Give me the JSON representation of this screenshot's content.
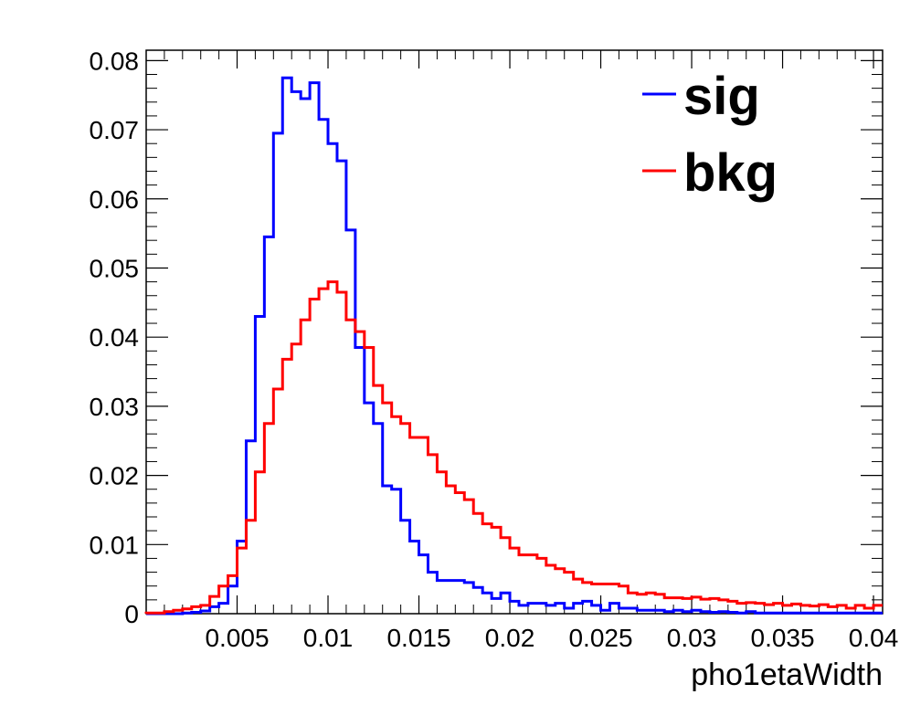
{
  "chart_data": {
    "type": "line",
    "style": "step-histogram",
    "title": "",
    "xlabel": "pho1etaWidth",
    "ylabel": "",
    "xlim": [
      0.0,
      0.0405
    ],
    "ylim": [
      0,
      0.0815
    ],
    "bin_width": 0.0005,
    "x_ticks": [
      {
        "value": 0.005,
        "label": "0.005"
      },
      {
        "value": 0.01,
        "label": "0.01"
      },
      {
        "value": 0.015,
        "label": "0.015"
      },
      {
        "value": 0.02,
        "label": "0.02"
      },
      {
        "value": 0.025,
        "label": "0.025"
      },
      {
        "value": 0.03,
        "label": "0.03"
      },
      {
        "value": 0.035,
        "label": "0.035"
      },
      {
        "value": 0.04,
        "label": "0.04"
      }
    ],
    "y_ticks": [
      {
        "value": 0,
        "label": "0"
      },
      {
        "value": 0.01,
        "label": "0.01"
      },
      {
        "value": 0.02,
        "label": "0.02"
      },
      {
        "value": 0.03,
        "label": "0.03"
      },
      {
        "value": 0.04,
        "label": "0.04"
      },
      {
        "value": 0.05,
        "label": "0.05"
      },
      {
        "value": 0.06,
        "label": "0.06"
      },
      {
        "value": 0.07,
        "label": "0.07"
      },
      {
        "value": 0.08,
        "label": "0.08"
      }
    ],
    "grid": false,
    "legend_position": "top-right",
    "series": [
      {
        "name": "sig",
        "color": "#0000ff",
        "values": [
          0,
          0,
          0,
          0,
          0.0001,
          0.0002,
          0.0004,
          0.001,
          0.0015,
          0.004,
          0.0105,
          0.025,
          0.043,
          0.0545,
          0.0695,
          0.0775,
          0.0755,
          0.0745,
          0.0768,
          0.0715,
          0.068,
          0.0655,
          0.0555,
          0.0385,
          0.0305,
          0.0275,
          0.0185,
          0.018,
          0.0135,
          0.0105,
          0.0085,
          0.006,
          0.0048,
          0.0048,
          0.0048,
          0.0045,
          0.0038,
          0.003,
          0.0022,
          0.003,
          0.0018,
          0.0012,
          0.0015,
          0.0015,
          0.0012,
          0.0015,
          0.0008,
          0.0015,
          0.0018,
          0.0012,
          0.0005,
          0.0015,
          0.0008,
          0.0008,
          0.0005,
          0.0005,
          0.0005,
          0.0003,
          0.0005,
          0.0003,
          0.0005,
          0.0003,
          0.0002,
          0.0003,
          0.0002,
          0.0001,
          0.0003,
          0.0001,
          0.0001,
          0.0001,
          0.0001,
          0.0001,
          0.0001,
          0.0001,
          0.0001,
          0.0001,
          0.0001,
          0.0001,
          0.0001,
          0.0001,
          0.0001
        ]
      },
      {
        "name": "bkg",
        "color": "#ff0000",
        "values": [
          0.0001,
          0.0001,
          0.0003,
          0.0005,
          0.0007,
          0.001,
          0.0012,
          0.0025,
          0.004,
          0.0055,
          0.0095,
          0.0135,
          0.0205,
          0.0275,
          0.0325,
          0.0368,
          0.039,
          0.0425,
          0.0455,
          0.047,
          0.048,
          0.0465,
          0.0425,
          0.0408,
          0.0385,
          0.033,
          0.0305,
          0.0285,
          0.0275,
          0.0255,
          0.0255,
          0.023,
          0.0205,
          0.0185,
          0.0175,
          0.0165,
          0.0145,
          0.013,
          0.0125,
          0.011,
          0.0095,
          0.0085,
          0.0085,
          0.008,
          0.007,
          0.0065,
          0.006,
          0.005,
          0.0045,
          0.0043,
          0.0043,
          0.0043,
          0.004,
          0.003,
          0.0028,
          0.003,
          0.0028,
          0.0023,
          0.0023,
          0.0022,
          0.0024,
          0.0021,
          0.0022,
          0.002,
          0.0018,
          0.0015,
          0.0016,
          0.0015,
          0.0013,
          0.0015,
          0.0012,
          0.0014,
          0.0012,
          0.0011,
          0.0013,
          0.001,
          0.0012,
          0.0008,
          0.0012,
          0.0008,
          0.0012
        ]
      }
    ]
  }
}
